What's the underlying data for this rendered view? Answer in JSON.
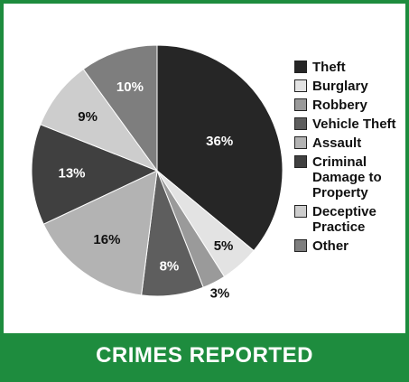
{
  "chart_data": {
    "type": "pie",
    "title": "CRIMES REPORTED",
    "slices": [
      {
        "label": "Theft",
        "value": 36,
        "display": "36%",
        "color": "#262626",
        "text_color": "#ffffff"
      },
      {
        "label": "Burglary",
        "value": 5,
        "display": "5%",
        "color": "#e3e3e3",
        "text_color": "#111111"
      },
      {
        "label": "Robbery",
        "value": 3,
        "display": "3%",
        "color": "#9a9a9a",
        "text_color": "#111111"
      },
      {
        "label": "Vehicle Theft",
        "value": 8,
        "display": "8%",
        "color": "#5e5e5e",
        "text_color": "#ffffff"
      },
      {
        "label": "Assault",
        "value": 16,
        "display": "16%",
        "color": "#b3b3b3",
        "text_color": "#111111"
      },
      {
        "label": "Criminal Damage to Property",
        "value": 13,
        "display": "13%",
        "color": "#404040",
        "text_color": "#ffffff"
      },
      {
        "label": "Deceptive Practice",
        "value": 9,
        "display": "9%",
        "color": "#cdcdcd",
        "text_color": "#111111"
      },
      {
        "label": "Other",
        "value": 10,
        "display": "10%",
        "color": "#7e7e7e",
        "text_color": "#ffffff"
      }
    ],
    "legend_position": "right"
  },
  "colors": {
    "accent": "#1e8c3e",
    "background": "#ffffff"
  }
}
